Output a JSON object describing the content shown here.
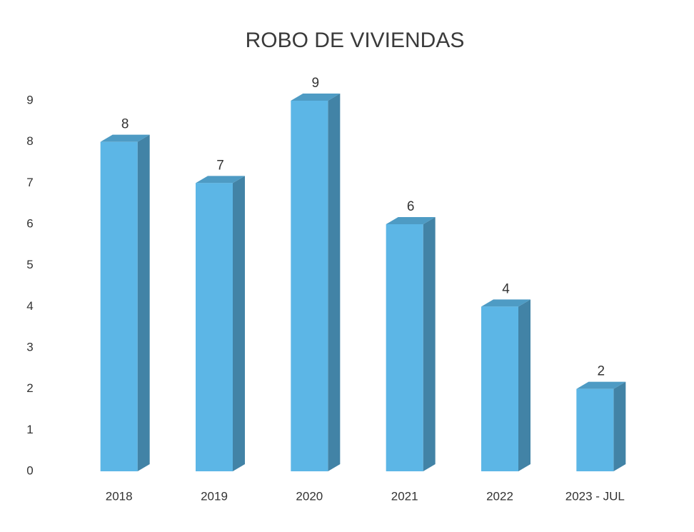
{
  "chart_data": {
    "type": "bar3d",
    "title": "ROBO DE VIVIENDAS",
    "categories": [
      "2018",
      "2019",
      "2020",
      "2021",
      "2022",
      "2023 - JUL"
    ],
    "values": [
      8,
      7,
      9,
      6,
      4,
      2
    ],
    "color": "#5cb6e6",
    "ylim": [
      0,
      9
    ],
    "yticks": [
      0,
      1,
      2,
      3,
      4,
      5,
      6,
      7,
      8,
      9
    ],
    "grid": false,
    "data_labels": true
  }
}
